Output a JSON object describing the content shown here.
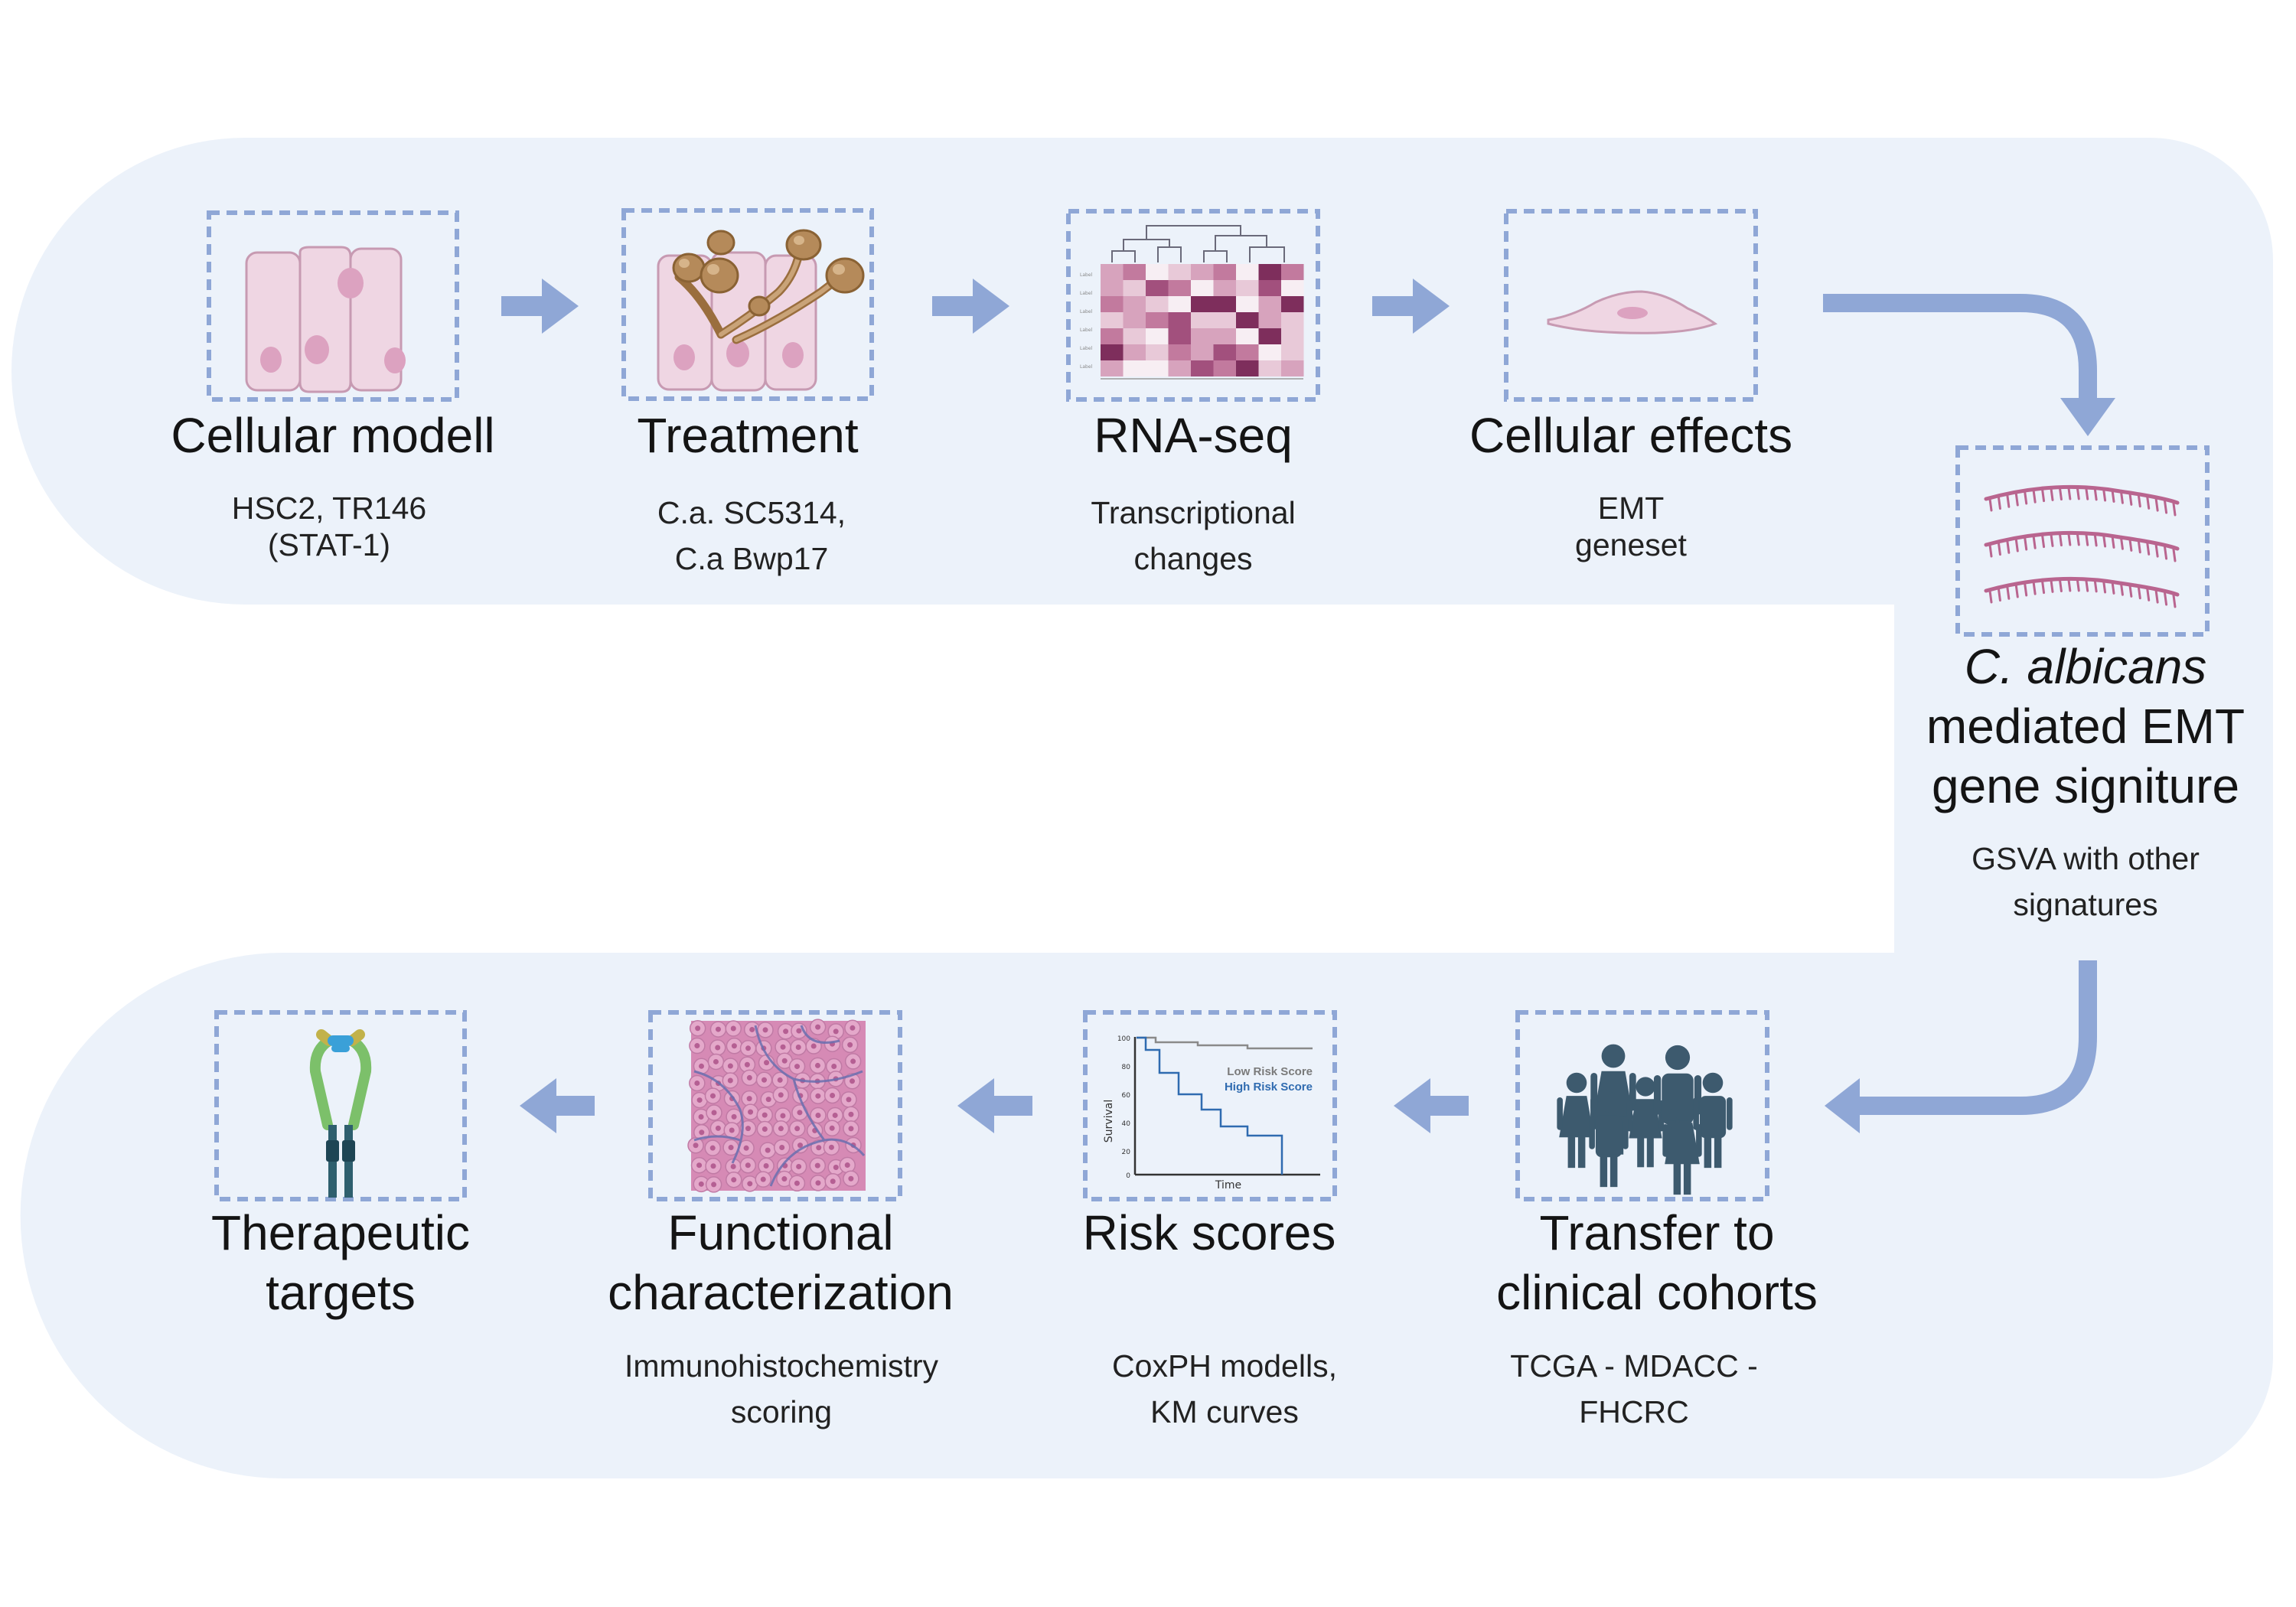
{
  "steps_top": [
    {
      "title": "Cellular modell",
      "sub1": "HSC2, TR146",
      "sub2": "(STAT-1)"
    },
    {
      "title": "Treatment",
      "sub1": "C.a. SC5314,",
      "sub2": "C.a Bwp17"
    },
    {
      "title": "RNA-seq",
      "sub1": "Transcriptional",
      "sub2": "changes"
    },
    {
      "title": "Cellular effects",
      "sub1": "EMT",
      "sub2": "geneset"
    }
  ],
  "signature": {
    "title_italic": "C. albicans",
    "title_line2": "mediated EMT",
    "title_line3": "gene signiture",
    "sub1": "GSVA with other",
    "sub2": "signatures"
  },
  "steps_bottom": [
    {
      "title1": "Therapeutic",
      "title2": "targets",
      "sub1": "",
      "sub2": ""
    },
    {
      "title1": "Functional",
      "title2": "characterization",
      "sub1": "Immunohistochemistry",
      "sub2": "scoring"
    },
    {
      "title1": "Risk scores",
      "title2": "",
      "sub1": "CoxPH modells,",
      "sub2": "KM curves"
    },
    {
      "title1": "Transfer to",
      "title2": "clinical cohorts",
      "sub1": "TCGA - MDACC -",
      "sub2": "FHCRC"
    }
  ],
  "km_plot": {
    "legend_low": "Low Risk Score",
    "legend_high": "High Risk Score",
    "ylabel": "Survival",
    "xlabel": "Time",
    "yticks": [
      "100",
      "80",
      "60",
      "40",
      "20",
      "0"
    ]
  },
  "colors": {
    "band": "#ecf2fa",
    "arrow": "#8fa7d6",
    "box_border": "#8fa7d6",
    "cell_fill": "#efd6e3",
    "cell_border": "#c79ab2",
    "nucleus": "#dca2c0",
    "person": "#3d5a6e",
    "low_risk": "#8a8a8a",
    "high_risk": "#2f6bb0"
  }
}
